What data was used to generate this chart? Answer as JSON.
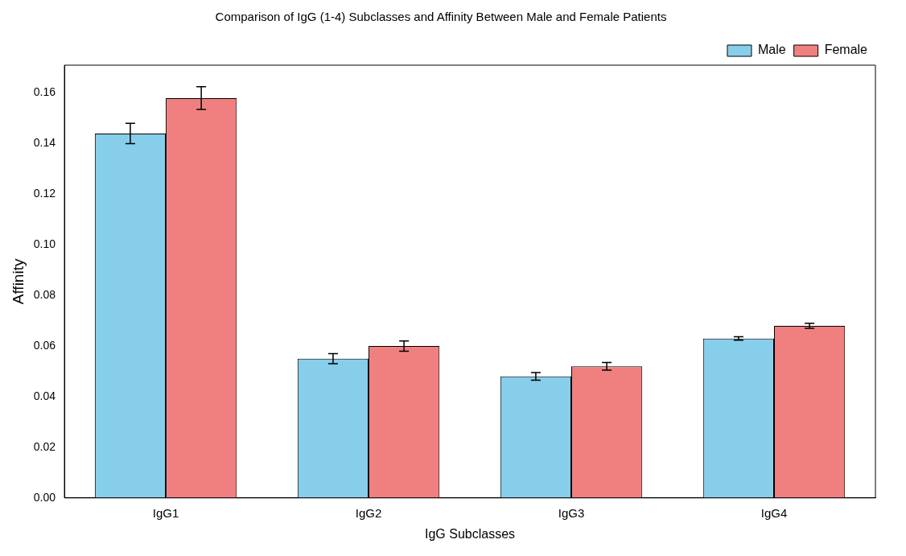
{
  "chart_data": {
    "type": "bar",
    "title": "Comparison of IgG (1-4) Subclasses and Affinity Between Male and Female Patients",
    "xlabel": "IgG Subclasses",
    "ylabel": "Affinity",
    "categories": [
      "IgG1",
      "IgG2",
      "IgG3",
      "IgG4"
    ],
    "series": [
      {
        "name": "Male",
        "color": "#87ceeb",
        "values": [
          0.144,
          0.055,
          0.048,
          0.063
        ],
        "errors": [
          0.004,
          0.002,
          0.0015,
          0.0007
        ]
      },
      {
        "name": "Female",
        "color": "#f08080",
        "values": [
          0.158,
          0.06,
          0.052,
          0.068
        ],
        "errors": [
          0.0045,
          0.002,
          0.0015,
          0.001
        ]
      }
    ],
    "ylim": [
      0,
      0.171
    ],
    "yticks": [
      {
        "value": 0,
        "label": "0.00"
      },
      0.02,
      0.04,
      0.06,
      0.08,
      {
        "value": 0.1,
        "label": "0.10"
      },
      0.12,
      0.14,
      0.16
    ],
    "legend": "top right",
    "grid": false
  }
}
